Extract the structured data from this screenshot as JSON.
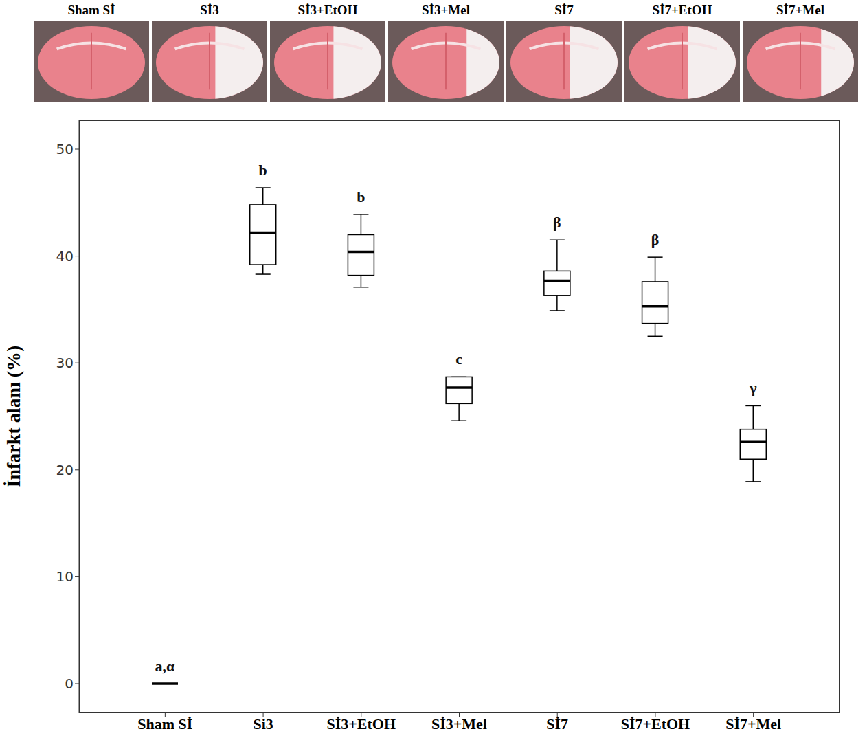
{
  "chart_data": {
    "type": "box",
    "image_labels": [
      "Sham Sİ",
      "Sİ3",
      "Sİ3+EtOH",
      "Sİ3+Mel",
      "Sİ7",
      "Sİ7+EtOH",
      "Sİ7+Mel"
    ],
    "categories": [
      "Sham Sİ",
      "Si3",
      "Sİ3+EtOH",
      "Sİ3+Mel",
      "Sİ7",
      "Sİ7+EtOH",
      "Sİ7+Mel"
    ],
    "stats": [
      {
        "min": 0,
        "q1": 0,
        "median": 0,
        "q3": 0,
        "max": 0
      },
      {
        "min": 38.3,
        "q1": 39.2,
        "median": 42.2,
        "q3": 44.8,
        "max": 46.4
      },
      {
        "min": 37.1,
        "q1": 38.2,
        "median": 40.4,
        "q3": 42.0,
        "max": 43.9
      },
      {
        "min": 24.6,
        "q1": 26.2,
        "median": 27.7,
        "q3": 28.7,
        "max": 28.7
      },
      {
        "min": 34.9,
        "q1": 36.3,
        "median": 37.7,
        "q3": 38.6,
        "max": 41.5
      },
      {
        "min": 32.5,
        "q1": 33.7,
        "median": 35.3,
        "q3": 37.6,
        "max": 39.9
      },
      {
        "min": 18.9,
        "q1": 21.0,
        "median": 22.6,
        "q3": 23.8,
        "max": 26.0
      }
    ],
    "letters": [
      "a,α",
      "b",
      "b",
      "c",
      "β",
      "β",
      "γ"
    ],
    "y_label": "İnfarkt alanı (%)",
    "ylim": [
      -2.7,
      52.7
    ],
    "yticks": [
      0,
      10,
      20,
      30,
      40,
      50
    ],
    "color": "#000000"
  }
}
